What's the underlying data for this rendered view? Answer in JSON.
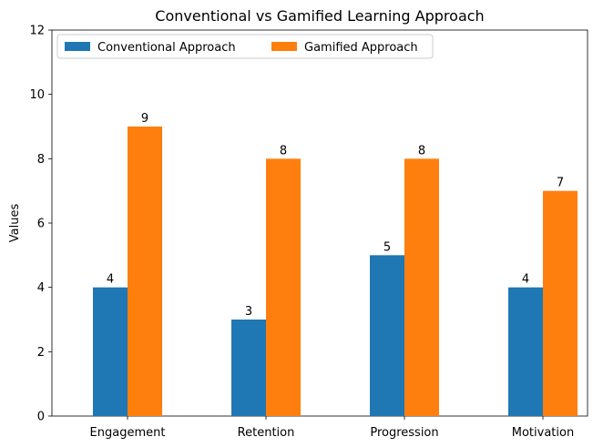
{
  "chart_data": {
    "type": "bar",
    "title": "Conventional vs Gamified Learning Approach",
    "xlabel": "",
    "ylabel": "Values",
    "categories": [
      "Engagement",
      "Retention",
      "Progression",
      "Motivation"
    ],
    "series": [
      {
        "name": "Conventional Approach",
        "values": [
          4,
          3,
          5,
          4
        ],
        "color": "#1f77b4"
      },
      {
        "name": "Gamified Approach",
        "values": [
          9,
          8,
          8,
          7
        ],
        "color": "#ff7f0e"
      }
    ],
    "ylim": [
      0,
      12
    ],
    "yticks": [
      0,
      2,
      4,
      6,
      8,
      10,
      12
    ],
    "grid": false,
    "legend_position": "top-left",
    "legend_columns": 2,
    "show_value_labels": true
  }
}
